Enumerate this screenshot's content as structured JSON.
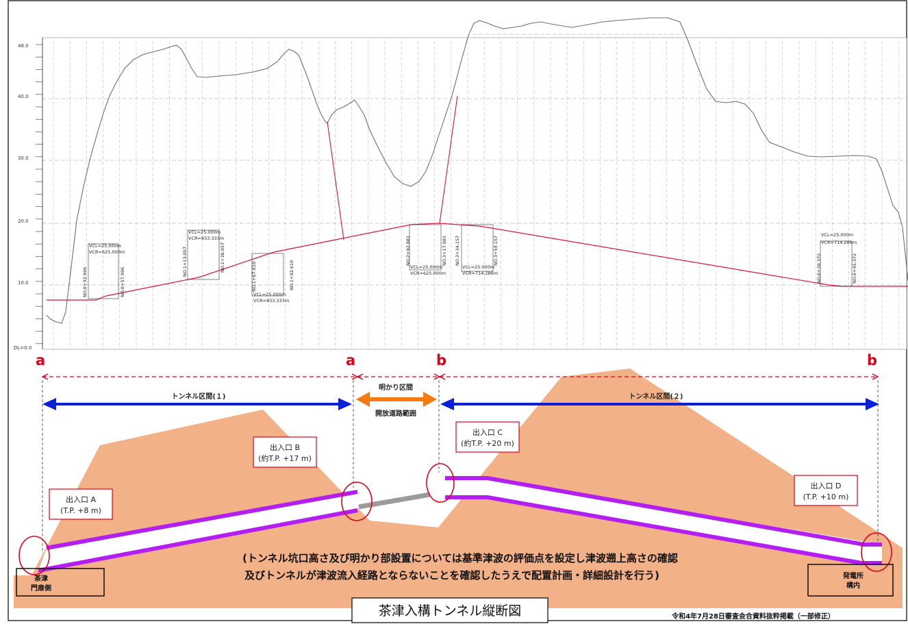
{
  "profile": {
    "elevation_ticks": [
      "48.0",
      "40.0",
      "30.0",
      "20.0",
      "10.0",
      "DL=0.0"
    ],
    "curve_labels": [
      [
        "VCL=25.000m",
        "VCR=625.000m"
      ],
      [
        "VCL=25.000m",
        "VCR=833.333m"
      ],
      [
        "VCL=25.000m",
        "VCR=833.333m"
      ],
      [
        "VCL=25.000m",
        "VCR=625.000m"
      ],
      [
        "VCL=25.000m",
        "VCR=714.286m"
      ],
      [
        "VCL=25.000m",
        "VCR=714.286m"
      ]
    ],
    "station_labels": [
      "NO.0+32.996",
      "NO.0+57.996",
      "NO.1+13.057",
      "NO.1+38.057",
      "NO.1+67.610",
      "NO.1+92.610",
      "NO.2+92.081",
      "NO.3+17.081",
      "NO.3+34.157",
      "NO.3+59.157",
      "NO.6+20.372",
      "NO.6+45.372"
    ]
  },
  "markers": {
    "a": "a",
    "b": "b"
  },
  "sections": {
    "tunnel1": "トンネル区間(１)",
    "open_line1": "明かり区間",
    "open_line2": "開放道路範囲",
    "tunnel2": "トンネル区間(２)"
  },
  "portals": {
    "A": {
      "name": "出入口 A",
      "level": "(T.P. +8 m)"
    },
    "B": {
      "name": "出入口 B",
      "level": "(約T.P. +17 m)"
    },
    "C": {
      "name": "出入口 C",
      "level": "(約T.P. +20 m)"
    },
    "D": {
      "name": "出入口 D",
      "level": "(T.P. +10 m)"
    }
  },
  "note": {
    "line1": "(トンネル坑口高さ及び明かり部設置については基準津波の評価点を設定し津波遡上高さの確認",
    "line2": "及びトンネルが津波流入経路とならないことを確認したうえで配置計画・詳細設計を行う)"
  },
  "places": {
    "left_line1": "茶津",
    "left_line2": "門扉側",
    "right_line1": "発電所",
    "right_line2": "構内"
  },
  "caption": "茶津入構トンネル縦断図",
  "footer": "令和4年7月28日審査会合資料抜粋掲載（一部修正）",
  "colors": {
    "terrain": "#f2b187",
    "tunnel": "#b21ff0",
    "arrow_blue": "#0a1fd6",
    "arrow_orange": "#f57a10",
    "accent_red": "#e0001b",
    "road_gray": "#9b9b9b"
  }
}
